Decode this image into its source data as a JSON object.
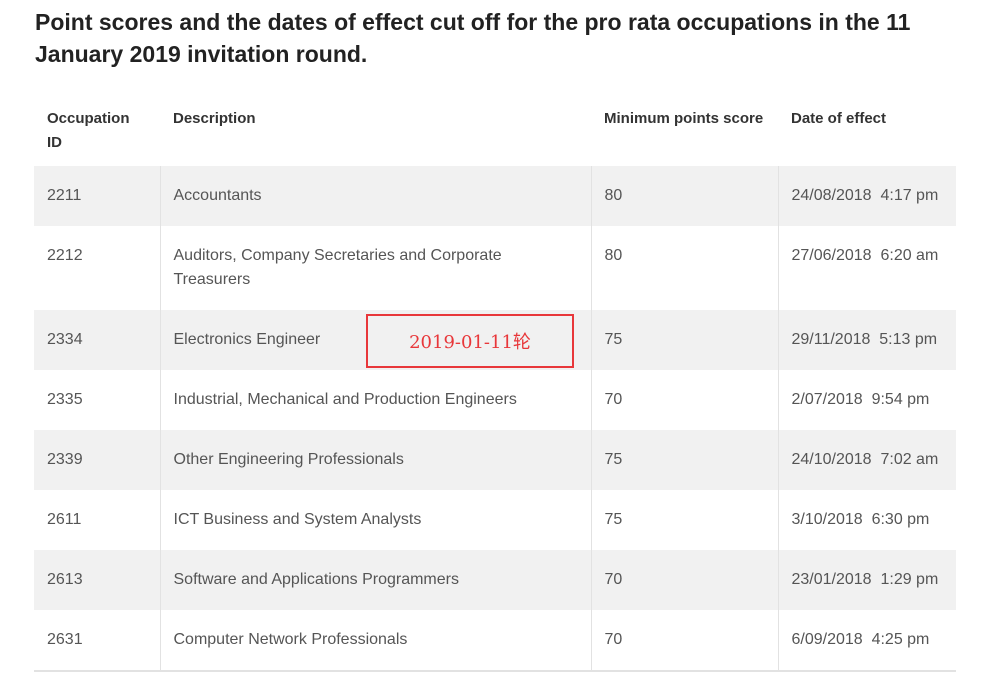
{
  "title": "Point scores and the dates of effect cut off for the pro rata occupations in the 11 January 2019 invitation round.",
  "headers": {
    "id": "Occupation ID",
    "description": "Description",
    "score": "Minimum points score",
    "date": "Date of effect"
  },
  "rows": [
    {
      "id": "2211",
      "description": "Accountants",
      "score": "80",
      "date": "24/08/2018  4:17 pm"
    },
    {
      "id": "2212",
      "description": "Auditors, Company Secretaries and Corporate Treasurers",
      "score": "80",
      "date": "27/06/2018  6:20 am"
    },
    {
      "id": "2334",
      "description": "Electronics Engineer",
      "score": "75",
      "date": "29/11/2018  5:13 pm"
    },
    {
      "id": "2335",
      "description": "Industrial, Mechanical and Production Engineers",
      "score": "70",
      "date": "2/07/2018  9:54 pm"
    },
    {
      "id": "2339",
      "description": "Other Engineering Professionals",
      "score": "75",
      "date": "24/10/2018  7:02 am"
    },
    {
      "id": "2611",
      "description": "ICT Business and System Analysts",
      "score": "75",
      "date": "3/10/2018  6:30 pm"
    },
    {
      "id": "2613",
      "description": "Software and Applications Programmers",
      "score": "70",
      "date": "23/01/2018  1:29 pm"
    },
    {
      "id": "2631",
      "description": "Computer Network Professionals",
      "score": "70",
      "date": "6/09/2018  4:25 pm"
    }
  ],
  "annotation": {
    "text": "2019-01-11轮",
    "color": "#e8373a"
  }
}
